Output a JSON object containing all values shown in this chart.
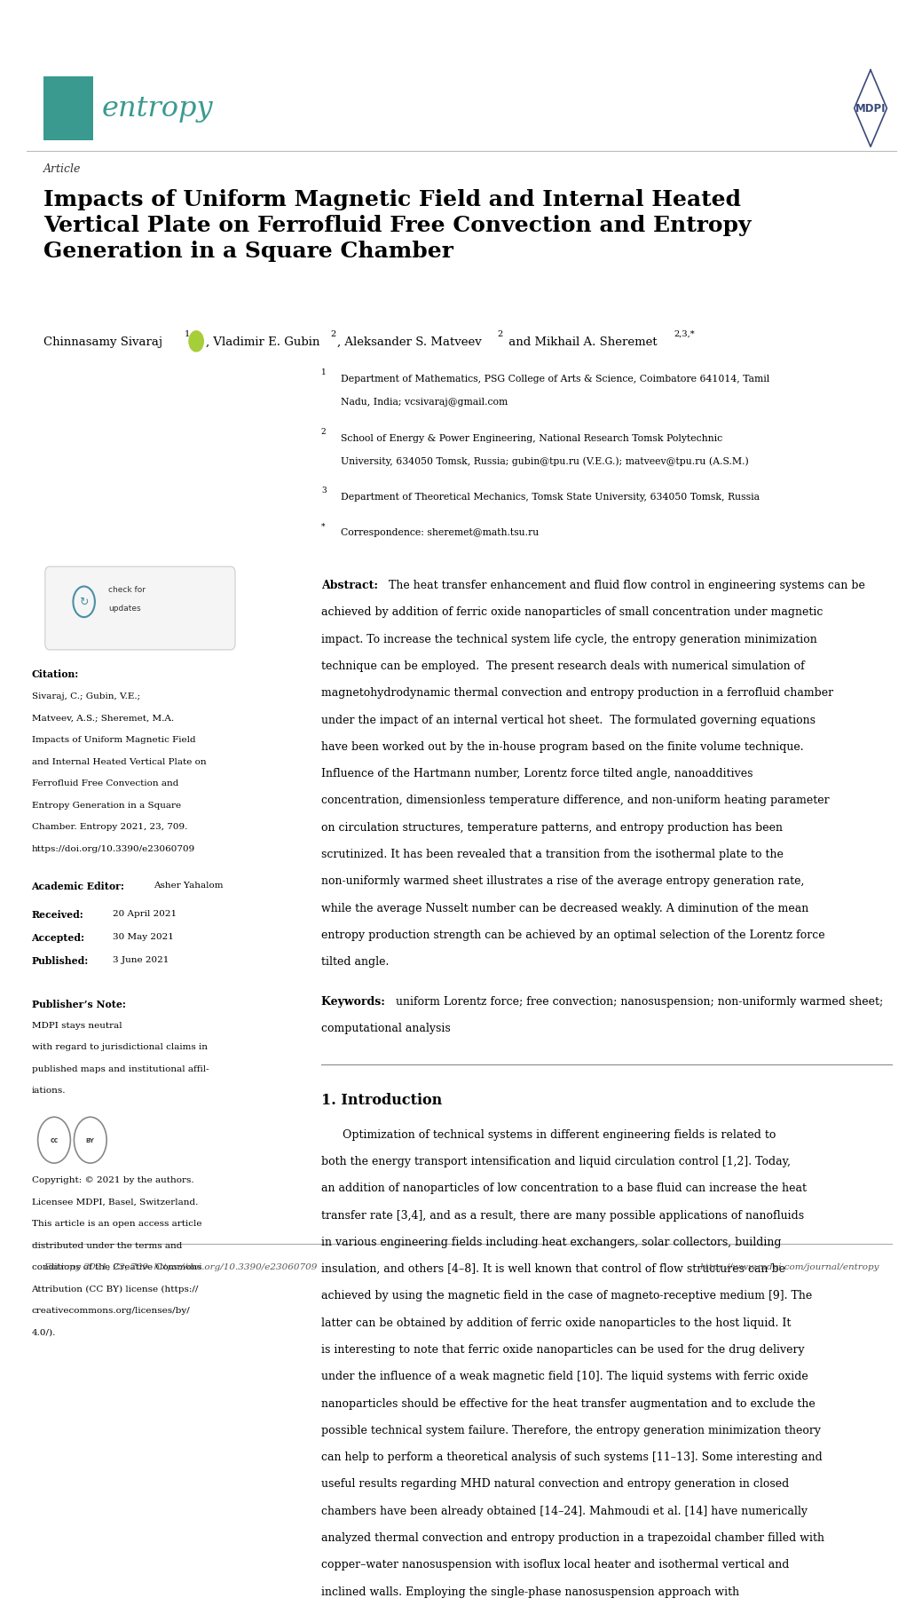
{
  "page_width": 10.2,
  "page_height": 14.42,
  "bg_color": "#ffffff",
  "journal_color": "#3a9a8f",
  "mdpi_color": "#3a4a7a",
  "article_label": "Article",
  "title": "Impacts of Uniform Magnetic Field and Internal Heated\nVertical Plate on Ferrofluid Free Convection and Entropy\nGeneration in a Square Chamber",
  "abstract_label": "Abstract:",
  "abstract_text": "The heat transfer enhancement and fluid flow control in engineering systems can be achieved by addition of ferric oxide nanoparticles of small concentration under magnetic impact. To increase the technical system life cycle, the entropy generation minimization technique can be employed.  The present research deals with numerical simulation of magnetohydrodynamic thermal convection and entropy production in a ferrofluid chamber under the impact of an internal vertical hot sheet.  The formulated governing equations have been worked out by the in-house program based on the finite volume technique. Influence of the Hartmann number, Lorentz force tilted angle, nanoadditives concentration, dimensionless temperature difference, and non-uniform heating parameter on circulation structures, temperature patterns, and entropy production has been scrutinized. It has been revealed that a transition from the isothermal plate to the non-uniformly warmed sheet illustrates a rise of the average entropy generation rate, while the average Nusselt number can be decreased weakly. A diminution of the mean entropy production strength can be achieved by an optimal selection of the Lorentz force tilted angle.",
  "keywords_label": "Keywords:",
  "keywords_text": "uniform Lorentz force; free convection; nanosuspension; non-uniformly warmed sheet; computational analysis",
  "section1_title": "1. Introduction",
  "intro_text": "      Optimization of technical systems in different engineering fields is related to both the energy transport intensification and liquid circulation control [1,2]. Today, an addition of nanoparticles of low concentration to a base fluid can increase the heat transfer rate [3,4], and as a result, there are many possible applications of nanofluids in various engineering fields including heat exchangers, solar collectors, building insulation, and others [4–8]. It is well known that control of flow structures can be achieved by using the magnetic field in the case of magneto-receptive medium [9]. The latter can be obtained by addition of ferric oxide nanoparticles to the host liquid. It is interesting to note that ferric oxide nanoparticles can be used for the drug delivery under the influence of a weak magnetic field [10]. The liquid systems with ferric oxide nanoparticles should be effective for the heat transfer augmentation and to exclude the possible technical system failure. Therefore, the entropy generation minimization theory can help to perform a theoretical analysis of such systems [11–13]. Some interesting and useful results regarding MHD natural convection and entropy generation in closed chambers have been already obtained [14–24]. Mahmoudi et al. [14] have numerically analyzed thermal convection and entropy production in a trapezoidal chamber filled with copper–water nanosuspension with isoflux local heater and isothermal vertical and inclined walls. Employing the single-phase nanosuspension approach with",
  "citation_title": "Citation:",
  "citation_text": "Sivaraj, C.; Gubin, V.E.;\nMatveev, A.S.; Sheremet, M.A.\nImpacts of Uniform Magnetic Field\nand Internal Heated Vertical Plate on\nFerrofluid Free Convection and\nEntropy Generation in a Square\nChamber. Entropy 2021, 23, 709.\nhttps://doi.org/10.3390/e23060709",
  "editor_label": "Academic Editor: ",
  "editor_text": "Asher Yahalom",
  "received_label": "Received:",
  "received_text": "20 April 2021",
  "accepted_label": "Accepted:",
  "accepted_text": "30 May 2021",
  "published_label": "Published:",
  "published_text": "3 June 2021",
  "publishers_note_label": "Publisher’s Note:",
  "publishers_note_text": "MDPI stays neutral\nwith regard to jurisdictional claims in\npublished maps and institutional affil-\niations.",
  "copyright_text": "Copyright: © 2021 by the authors.\nLicensee MDPI, Basel, Switzerland.\nThis article is an open access article\ndistributed under the terms and\nconditions of the Creative Commons\nAttribution (CC BY) license (https://\ncreativecommons.org/licenses/by/\n4.0/).",
  "footer_left": "Entropy 2021, 23, 709. https://doi.org/10.3390/e23060709",
  "footer_right": "https://www.mdpi.com/journal/entropy",
  "aff1_sup": "1",
  "aff1_text": "Department of Mathematics, PSG College of Arts & Science, Coimbatore 641014, Tamil Nadu, India; vcsivaraj@gmail.com",
  "aff2_sup": "2",
  "aff2_text": "School of Energy & Power Engineering, National Research Tomsk Polytechnic University, 634050 Tomsk, Russia; gubin@tpu.ru (V.E.G.); matveev@tpu.ru (A.S.M.)",
  "aff3_sup": "3",
  "aff3_text": "Department of Theoretical Mechanics, Tomsk State University, 634050 Tomsk, Russia",
  "aff4_sup": "*",
  "aff4_text": "Correspondence: sheremet@math.tsu.ru"
}
